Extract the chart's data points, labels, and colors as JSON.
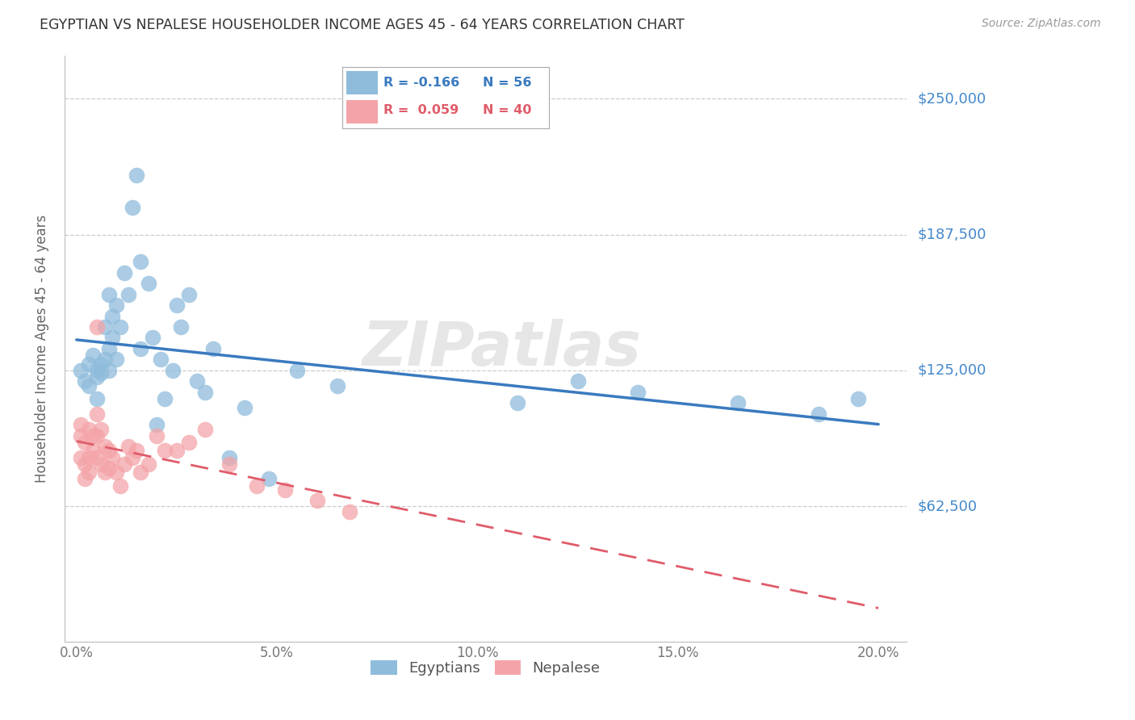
{
  "title": "EGYPTIAN VS NEPALESE HOUSEHOLDER INCOME AGES 45 - 64 YEARS CORRELATION CHART",
  "source": "Source: ZipAtlas.com",
  "ylabel": "Householder Income Ages 45 - 64 years",
  "xlabel_ticks": [
    "0.0%",
    "5.0%",
    "10.0%",
    "15.0%",
    "20.0%"
  ],
  "xlabel_vals": [
    0.0,
    0.05,
    0.1,
    0.15,
    0.2
  ],
  "ytick_labels": [
    "$62,500",
    "$125,000",
    "$187,500",
    "$250,000"
  ],
  "ytick_vals": [
    62500,
    125000,
    187500,
    250000
  ],
  "ylim": [
    0,
    270000
  ],
  "xlim": [
    -0.003,
    0.207
  ],
  "blue_color": "#8fbcdb",
  "pink_color": "#f4a4a8",
  "blue_line_color": "#3a7abf",
  "pink_line_color": "#e05c6a",
  "axis_label_color": "#4488cc",
  "title_color": "#333333",
  "grid_color": "#cccccc",
  "watermark": "ZIPatlas",
  "egyptians_x": [
    0.001,
    0.002,
    0.003,
    0.003,
    0.004,
    0.005,
    0.005,
    0.005,
    0.006,
    0.006,
    0.007,
    0.007,
    0.008,
    0.008,
    0.008,
    0.009,
    0.009,
    0.01,
    0.01,
    0.011,
    0.012,
    0.013,
    0.014,
    0.015,
    0.016,
    0.016,
    0.018,
    0.019,
    0.02,
    0.021,
    0.022,
    0.024,
    0.025,
    0.026,
    0.028,
    0.03,
    0.032,
    0.034,
    0.038,
    0.042,
    0.048,
    0.055,
    0.065,
    0.11,
    0.125,
    0.14,
    0.165,
    0.185,
    0.195
  ],
  "egyptians_y": [
    125000,
    120000,
    128000,
    118000,
    132000,
    125000,
    122000,
    112000,
    128000,
    124000,
    145000,
    130000,
    160000,
    135000,
    125000,
    150000,
    140000,
    155000,
    130000,
    145000,
    170000,
    160000,
    200000,
    215000,
    175000,
    135000,
    165000,
    140000,
    100000,
    130000,
    112000,
    125000,
    155000,
    145000,
    160000,
    120000,
    115000,
    135000,
    85000,
    108000,
    75000,
    125000,
    118000,
    110000,
    120000,
    115000,
    110000,
    105000,
    112000
  ],
  "nepalese_x": [
    0.001,
    0.001,
    0.001,
    0.002,
    0.002,
    0.002,
    0.003,
    0.003,
    0.003,
    0.004,
    0.004,
    0.005,
    0.005,
    0.005,
    0.006,
    0.006,
    0.007,
    0.007,
    0.008,
    0.008,
    0.009,
    0.01,
    0.011,
    0.012,
    0.013,
    0.014,
    0.015,
    0.016,
    0.018,
    0.02,
    0.022,
    0.025,
    0.028,
    0.032,
    0.038,
    0.045,
    0.052,
    0.06,
    0.068,
    0.005
  ],
  "nepalese_y": [
    100000,
    95000,
    85000,
    92000,
    82000,
    75000,
    98000,
    85000,
    78000,
    95000,
    88000,
    105000,
    95000,
    85000,
    98000,
    82000,
    90000,
    78000,
    88000,
    80000,
    85000,
    78000,
    72000,
    82000,
    90000,
    85000,
    88000,
    78000,
    82000,
    95000,
    88000,
    88000,
    92000,
    98000,
    82000,
    72000,
    70000,
    65000,
    60000,
    145000
  ]
}
